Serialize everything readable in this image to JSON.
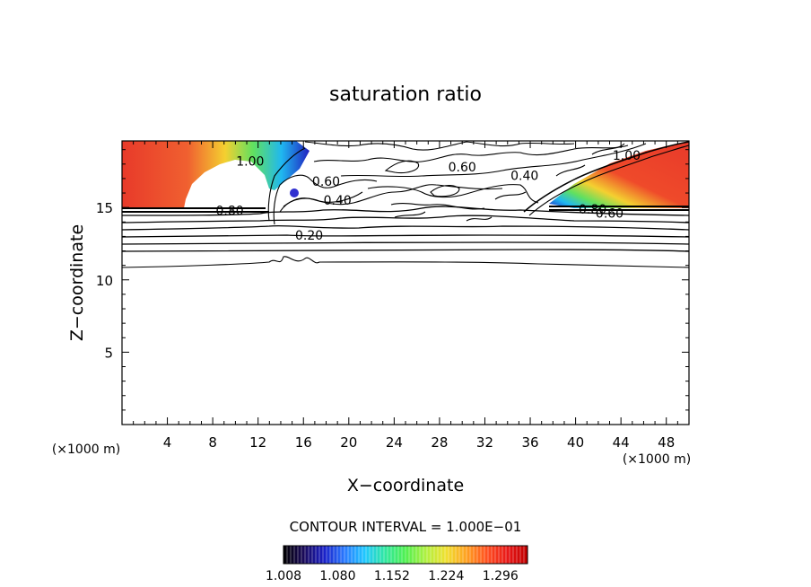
{
  "chart_data": {
    "type": "heatmap",
    "title": "saturation ratio",
    "xlabel": "X−coordinate",
    "ylabel": "Z−coordinate",
    "x_unit_left": "(×1000 m)",
    "x_unit_right": "(×1000 m)",
    "xlim": [
      0,
      50
    ],
    "ylim": [
      0,
      19.6
    ],
    "x_ticks": [
      4,
      8,
      12,
      16,
      20,
      24,
      28,
      32,
      36,
      40,
      44,
      48
    ],
    "y_ticks": [
      5,
      10,
      15
    ],
    "x_tick_labels": [
      "4",
      "8",
      "12",
      "16",
      "20",
      "24",
      "28",
      "32",
      "36",
      "40",
      "44",
      "48"
    ],
    "y_tick_labels": [
      "5",
      "10",
      "15"
    ],
    "contour_interval_text": "CONTOUR INTERVAL = 1.000E−01",
    "contour_labels": [
      {
        "text": "1.00",
        "x": 11.3,
        "z": 18.2
      },
      {
        "text": "0.60",
        "x": 18.0,
        "z": 16.8
      },
      {
        "text": "0.40",
        "x": 19.0,
        "z": 15.5
      },
      {
        "text": "0.80",
        "x": 9.5,
        "z": 14.8
      },
      {
        "text": "0.20",
        "x": 16.5,
        "z": 13.1
      },
      {
        "text": "0.60",
        "x": 30.0,
        "z": 17.8
      },
      {
        "text": "0.40",
        "x": 35.5,
        "z": 17.2
      },
      {
        "text": "1.00",
        "x": 44.5,
        "z": 18.6
      },
      {
        "text": "0.80",
        "x": 41.5,
        "z": 14.9
      },
      {
        "text": "0.60",
        "x": 43.0,
        "z": 14.6
      }
    ],
    "colorbar": {
      "tick_labels": [
        "1.008",
        "1.080",
        "1.152",
        "1.224",
        "1.296"
      ],
      "min": 1.008,
      "max": 1.332,
      "colors": [
        "#000000",
        "#1a0a5a",
        "#1a20c8",
        "#2a7aff",
        "#20c8ff",
        "#30e8a0",
        "#50f050",
        "#b0f040",
        "#f0e030",
        "#ffa020",
        "#ff5020",
        "#e81818",
        "#c00000"
      ]
    },
    "supersaturated_regions": [
      {
        "name": "left",
        "x_range": [
          0,
          14.8
        ],
        "z_range": [
          15.2,
          19.6
        ]
      },
      {
        "name": "right",
        "x_range": [
          37,
          50
        ],
        "z_range": [
          15.2,
          19.6
        ]
      }
    ]
  }
}
